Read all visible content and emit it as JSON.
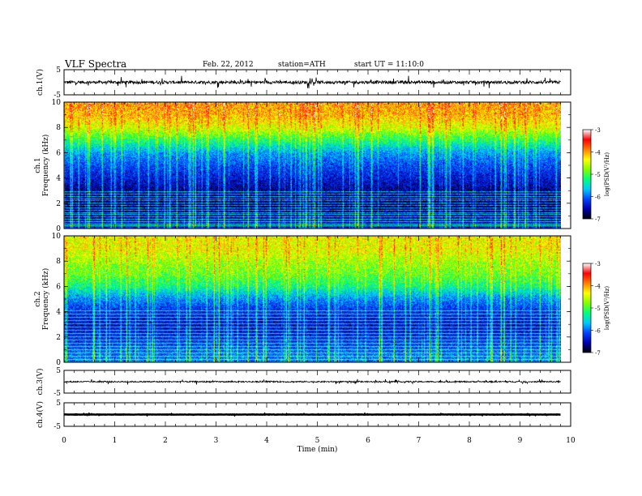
{
  "header": {
    "title": "VLF  Spectra",
    "date": "Feb. 22, 2012",
    "station": "station=ATH",
    "start": "start  UT  =    11:10:0"
  },
  "colorbar": {
    "ticks": [
      "-3",
      "-4",
      "-5",
      "-6",
      "-7"
    ],
    "label": "log(PSD(V²/Hz)",
    "colors": [
      "#000000",
      "#0000aa",
      "#0044ff",
      "#00c8ff",
      "#00ff80",
      "#80ff00",
      "#ffff00",
      "#ff8000",
      "#ff0000",
      "#ffffff"
    ]
  },
  "chart_data": [
    {
      "type": "line",
      "panel": "ch1-waveform",
      "ylabel": "ch.1(V)",
      "ylim": [
        -5,
        5
      ],
      "y_ticks": [
        "5",
        "-5"
      ],
      "x_range_min": [
        0,
        10
      ],
      "description_values": {
        "baseline_v": 0,
        "spike_amplitude_v": 2
      }
    },
    {
      "type": "heatmap",
      "panel": "ch1-spectrogram",
      "ylabel_top": "ch.1",
      "ylabel": "Frequency  (kHz)",
      "ylim": [
        0,
        10
      ],
      "y_ticks": [
        "10",
        "8",
        "6",
        "4",
        "2",
        "0"
      ],
      "x_range_min": [
        0,
        9.8
      ],
      "zlim_log_psd": [
        -7,
        -3
      ],
      "profile_log_psd": [
        [
          0,
          -6.2
        ],
        [
          1,
          -6.6
        ],
        [
          2,
          -6.8
        ],
        [
          3,
          -6.6
        ],
        [
          4,
          -6.3
        ],
        [
          5,
          -6.0
        ],
        [
          6,
          -5.6
        ],
        [
          7,
          -4.9
        ],
        [
          8,
          -4.2
        ],
        [
          9,
          -3.8
        ],
        [
          10,
          -3.7
        ]
      ]
    },
    {
      "type": "heatmap",
      "panel": "ch2-spectrogram",
      "ylabel_top": "ch.2",
      "ylabel": "Frequency  (kHz)",
      "ylim": [
        0,
        10
      ],
      "y_ticks": [
        "10",
        "8",
        "6",
        "4",
        "2",
        "0"
      ],
      "x_range_min": [
        0,
        9.8
      ],
      "zlim_log_psd": [
        -7,
        -3
      ],
      "profile_log_psd": [
        [
          0,
          -5.7
        ],
        [
          1,
          -5.9
        ],
        [
          2,
          -6.2
        ],
        [
          3,
          -6.4
        ],
        [
          4,
          -6.2
        ],
        [
          5,
          -5.7
        ],
        [
          6,
          -5.0
        ],
        [
          7,
          -4.6
        ],
        [
          8,
          -4.4
        ],
        [
          9,
          -4.1
        ],
        [
          10,
          -4.1
        ]
      ]
    },
    {
      "type": "line",
      "panel": "ch3-waveform",
      "ylabel": "ch.3(V)",
      "ylim": [
        -5,
        5
      ],
      "y_ticks": [
        "5",
        "-5"
      ],
      "x_range_min": [
        0,
        10
      ],
      "description_values": {
        "baseline_v": 0,
        "spike_amplitude_v": 1
      }
    },
    {
      "type": "line",
      "panel": "ch4-waveform",
      "ylabel": "ch.4(V)",
      "ylim": [
        -5,
        5
      ],
      "y_ticks": [
        "5",
        "-5"
      ],
      "x_range_min": [
        0,
        10
      ],
      "description_values": {
        "baseline_v": 0,
        "spike_amplitude_v": 0.2
      }
    }
  ],
  "x_axis": {
    "label": "Time  (min)",
    "ticks": [
      "0",
      "1",
      "2",
      "3",
      "4",
      "5",
      "6",
      "7",
      "8",
      "9",
      "10"
    ],
    "range": [
      0,
      10
    ]
  }
}
